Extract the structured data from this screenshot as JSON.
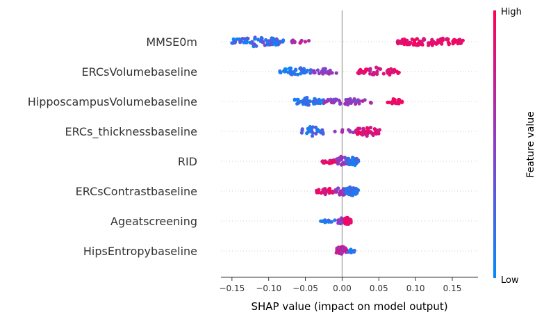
{
  "chart_data": {
    "type": "scatter",
    "subtype": "shap-beeswarm",
    "xlabel": "SHAP value (impact on model output)",
    "xlim": [
      -0.165,
      0.185
    ],
    "xticks": [
      -0.15,
      -0.1,
      -0.05,
      0.0,
      0.05,
      0.1,
      0.15
    ],
    "xtick_labels": [
      "−0.15",
      "−0.10",
      "−0.05",
      "0.00",
      "0.05",
      "0.10",
      "0.15"
    ],
    "colorbar": {
      "label": "Feature value",
      "high_label": "High",
      "low_label": "Low",
      "low_color": "#008bfb",
      "high_color": "#ff0052"
    },
    "features": [
      {
        "name": "MMSE0m",
        "clusters": [
          {
            "from": -0.15,
            "to": -0.08,
            "n": 70,
            "vmin": 0.0,
            "vmax": 0.45,
            "spread": 0.35
          },
          {
            "from": -0.07,
            "to": -0.045,
            "n": 10,
            "vmin": 0.55,
            "vmax": 0.8,
            "spread": 0.2
          },
          {
            "from": 0.075,
            "to": 0.165,
            "n": 95,
            "vmin": 0.8,
            "vmax": 1.0,
            "spread": 0.3
          }
        ]
      },
      {
        "name": "ERCsVolumebaseline",
        "clusters": [
          {
            "from": -0.085,
            "to": -0.04,
            "n": 40,
            "vmin": 0.0,
            "vmax": 0.3,
            "spread": 0.3
          },
          {
            "from": -0.04,
            "to": -0.005,
            "n": 22,
            "vmin": 0.4,
            "vmax": 0.65,
            "spread": 0.2
          },
          {
            "from": 0.02,
            "to": 0.08,
            "n": 50,
            "vmin": 0.7,
            "vmax": 1.0,
            "spread": 0.3
          }
        ]
      },
      {
        "name": "HipposcampusVolumebaseline",
        "clusters": [
          {
            "from": -0.065,
            "to": -0.025,
            "n": 45,
            "vmin": 0.0,
            "vmax": 0.3,
            "spread": 0.3
          },
          {
            "from": -0.025,
            "to": 0.04,
            "n": 48,
            "vmin": 0.35,
            "vmax": 0.75,
            "spread": 0.22
          },
          {
            "from": 0.062,
            "to": 0.082,
            "n": 22,
            "vmin": 0.85,
            "vmax": 1.0,
            "spread": 0.2
          }
        ]
      },
      {
        "name": "ERCs_thicknessbaseline",
        "clusters": [
          {
            "from": -0.055,
            "to": -0.025,
            "n": 28,
            "vmin": 0.0,
            "vmax": 0.35,
            "spread": 0.35
          },
          {
            "from": -0.01,
            "to": 0.02,
            "n": 8,
            "vmin": 0.45,
            "vmax": 0.7,
            "spread": 0.12
          },
          {
            "from": 0.018,
            "to": 0.052,
            "n": 48,
            "vmin": 0.7,
            "vmax": 1.0,
            "spread": 0.35
          }
        ]
      },
      {
        "name": "RID",
        "clusters": [
          {
            "from": -0.027,
            "to": -0.008,
            "n": 20,
            "vmin": 0.75,
            "vmax": 1.0,
            "spread": 0.22
          },
          {
            "from": -0.008,
            "to": 0.008,
            "n": 30,
            "vmin": 0.4,
            "vmax": 0.7,
            "spread": 0.35
          },
          {
            "from": 0.005,
            "to": 0.022,
            "n": 40,
            "vmin": 0.0,
            "vmax": 0.35,
            "spread": 0.35
          }
        ]
      },
      {
        "name": "ERCsContrastbaseline",
        "clusters": [
          {
            "from": -0.035,
            "to": -0.01,
            "n": 25,
            "vmin": 0.7,
            "vmax": 1.0,
            "spread": 0.22
          },
          {
            "from": -0.01,
            "to": 0.008,
            "n": 30,
            "vmin": 0.4,
            "vmax": 0.7,
            "spread": 0.35
          },
          {
            "from": 0.005,
            "to": 0.022,
            "n": 40,
            "vmin": 0.0,
            "vmax": 0.35,
            "spread": 0.35
          }
        ]
      },
      {
        "name": "Ageatscreening",
        "clusters": [
          {
            "from": -0.03,
            "to": -0.005,
            "n": 16,
            "vmin": 0.0,
            "vmax": 0.35,
            "spread": 0.12
          },
          {
            "from": -0.008,
            "to": 0.005,
            "n": 12,
            "vmin": 0.4,
            "vmax": 0.65,
            "spread": 0.22
          },
          {
            "from": 0.003,
            "to": 0.012,
            "n": 40,
            "vmin": 0.75,
            "vmax": 1.0,
            "spread": 0.3
          }
        ]
      },
      {
        "name": "HipsEntropybaseline",
        "clusters": [
          {
            "from": -0.008,
            "to": 0.006,
            "n": 50,
            "vmin": 0.45,
            "vmax": 0.85,
            "spread": 0.35
          },
          {
            "from": 0.006,
            "to": 0.018,
            "n": 8,
            "vmin": 0.0,
            "vmax": 0.4,
            "spread": 0.12
          }
        ]
      }
    ]
  }
}
